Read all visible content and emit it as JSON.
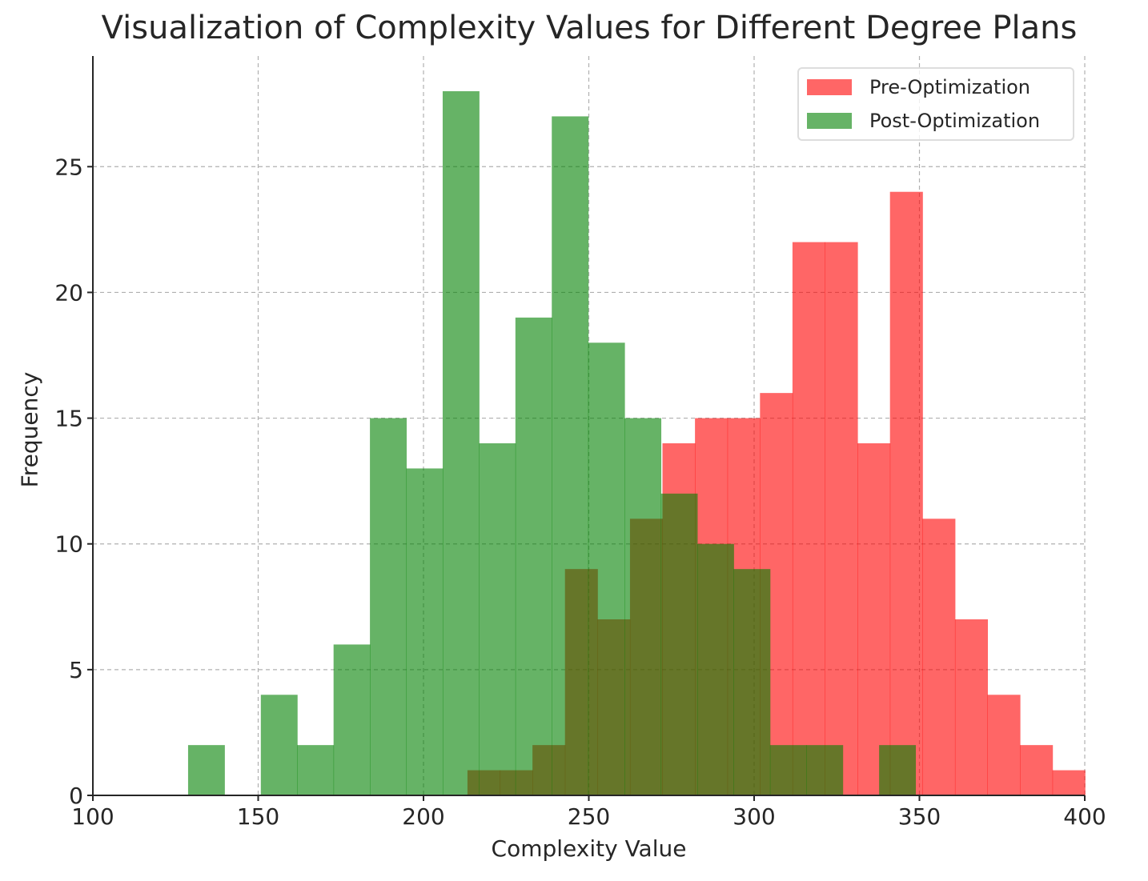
{
  "chart_data": {
    "type": "bar",
    "subtype": "overlapping-histogram",
    "title": "Visualization of Complexity Values for Different Degree Plans",
    "xlabel": "Complexity Value",
    "ylabel": "Frequency",
    "xlim": [
      100,
      400
    ],
    "ylim": [
      0,
      29.4
    ],
    "xticks": [
      100,
      150,
      200,
      250,
      300,
      350,
      400
    ],
    "yticks": [
      0,
      5,
      10,
      15,
      20,
      25
    ],
    "grid": true,
    "legend_position": "top-right",
    "series": [
      {
        "name": "Pre-Optimization",
        "color": "#ff0000",
        "alpha": 0.6,
        "bin_start": 213.3,
        "bin_width": 9.83,
        "values": [
          1,
          1,
          2,
          9,
          7,
          11,
          14,
          15,
          15,
          16,
          22,
          22,
          14,
          24,
          11,
          7,
          4,
          2,
          1
        ]
      },
      {
        "name": "Post-Optimization",
        "color": "#008000",
        "alpha": 0.6,
        "bin_start": 128.8,
        "bin_width": 11.0,
        "values": [
          2,
          0,
          4,
          2,
          6,
          15,
          13,
          28,
          14,
          19,
          27,
          18,
          15,
          12,
          10,
          9,
          2,
          2,
          0,
          2
        ]
      }
    ]
  }
}
